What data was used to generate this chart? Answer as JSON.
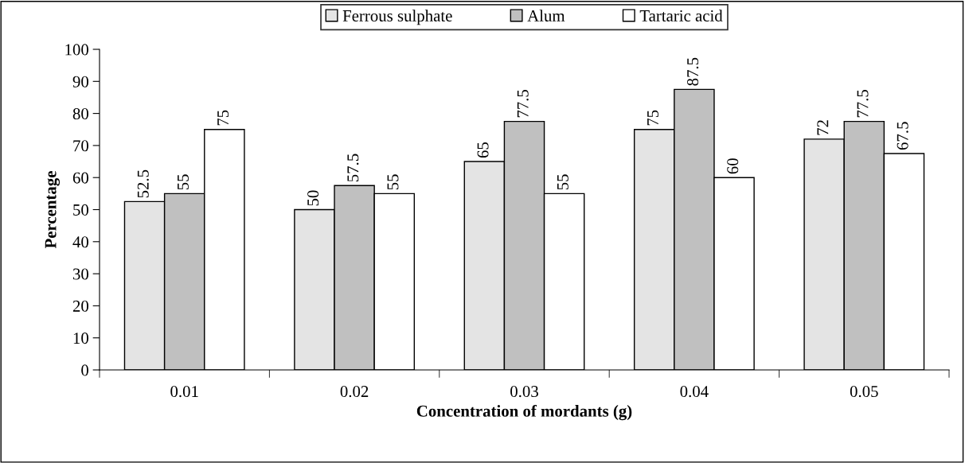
{
  "chart_data": {
    "type": "bar",
    "xlabel": "Concentration of mordants (g)",
    "ylabel": "Percentage",
    "categories": [
      "0.01",
      "0.02",
      "0.03",
      "0.04",
      "0.05"
    ],
    "series": [
      {
        "name": "Ferrous sulphate",
        "color": "#e4e4e4",
        "values": [
          52.5,
          50,
          65,
          75,
          72
        ]
      },
      {
        "name": "Alum",
        "color": "#c0c0c0",
        "values": [
          55,
          57.5,
          77.5,
          87.5,
          77.5
        ]
      },
      {
        "name": "Tartaric acid",
        "color": "#ffffff",
        "values": [
          75,
          55,
          55,
          60,
          67.5
        ]
      }
    ],
    "ylim": [
      0,
      100
    ],
    "yticks": [
      0,
      10,
      20,
      30,
      40,
      50,
      60,
      70,
      80,
      90,
      100
    ],
    "grid": false,
    "legend": "top",
    "data_labels": true
  }
}
